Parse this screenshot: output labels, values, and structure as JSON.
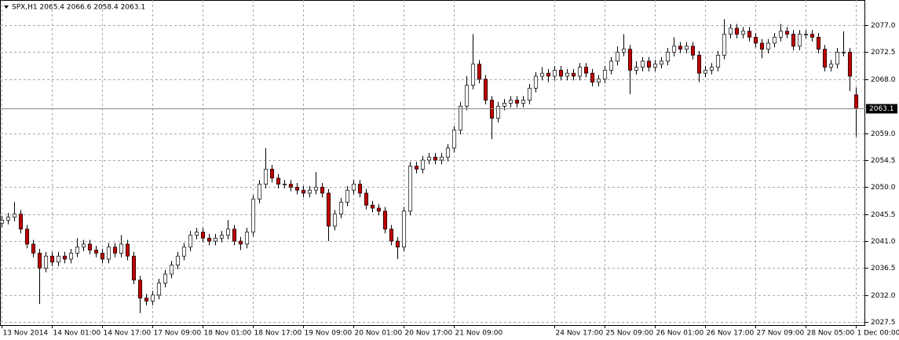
{
  "chart_data": {
    "type": "candlestick",
    "title": "SPX,H1  2065.4 2066.6 2058.4 2063.1",
    "open": [
      2044.0,
      2044.5,
      2045.0,
      2045.5,
      2043.0,
      2040.5,
      2039.0,
      2036.5,
      2038.5,
      2037.5,
      2038.5,
      2038.0,
      2039.0,
      2040.0,
      2040.5,
      2039.5,
      2039.0,
      2038.0,
      2040.0,
      2039.0,
      2040.5,
      2038.5,
      2034.5,
      2031.5,
      2031.0,
      2032.0,
      2034.0,
      2035.5,
      2037.0,
      2038.5,
      2040.0,
      2042.0,
      2042.5,
      2041.5,
      2041.0,
      2041.5,
      2042.0,
      2043.0,
      2041.0,
      2040.5,
      2042.5,
      2048.0,
      2050.5,
      2053.0,
      2051.5,
      2050.5,
      2050.5,
      2050.0,
      2049.5,
      2049.0,
      2049.5,
      2050.0,
      2049.0,
      2043.5,
      2045.5,
      2047.5,
      2049.5,
      2050.5,
      2049.0,
      2047.0,
      2046.5,
      2046.0,
      2043.0,
      2041.0,
      2040.0,
      2046.0,
      2053.5,
      2053.0,
      2054.5,
      2055.0,
      2054.5,
      2055.0,
      2056.5,
      2059.5,
      2063.5,
      2067.0,
      2070.5,
      2068.0,
      2064.5,
      2061.5,
      2063.5,
      2064.0,
      2064.5,
      2064.0,
      2064.5,
      2066.5,
      2068.5,
      2069.0,
      2068.5,
      2069.5,
      2068.5,
      2069.0,
      2068.5,
      2070.0,
      2069.0,
      2067.5,
      2068.0,
      2069.5,
      2071.0,
      2072.5,
      2073.0,
      2069.5,
      2070.0,
      2071.0,
      2070.0,
      2070.5,
      2071.0,
      2072.5,
      2073.5,
      2073.0,
      2073.5,
      2072.0,
      2069.0,
      2069.5,
      2070.0,
      2072.0,
      2075.5,
      2076.5,
      2075.5,
      2076.0,
      2075.0,
      2074.0,
      2073.0,
      2074.0,
      2075.0,
      2076.0,
      2075.5,
      2073.5,
      2075.5,
      2075.5,
      2075.0,
      2073.0,
      2070.0,
      2070.5,
      2072.5,
      2072.5,
      2065.4
    ],
    "high": [
      2045.2,
      2045.7,
      2047.5,
      2046.2,
      2043.7,
      2041.2,
      2039.7,
      2039.2,
      2039.2,
      2039.2,
      2039.2,
      2039.7,
      2041.5,
      2041.2,
      2041.2,
      2040.2,
      2039.7,
      2040.7,
      2040.7,
      2042.0,
      2041.2,
      2039.2,
      2035.2,
      2032.2,
      2032.7,
      2034.7,
      2036.2,
      2037.7,
      2039.2,
      2040.7,
      2042.7,
      2043.2,
      2043.2,
      2042.2,
      2042.2,
      2042.7,
      2044.5,
      2043.7,
      2041.7,
      2043.2,
      2048.7,
      2051.2,
      2056.5,
      2053.7,
      2052.2,
      2051.2,
      2051.2,
      2050.7,
      2050.2,
      2050.2,
      2052.5,
      2050.7,
      2049.7,
      2046.2,
      2048.2,
      2050.2,
      2051.2,
      2051.2,
      2049.7,
      2047.7,
      2047.2,
      2046.7,
      2043.7,
      2041.7,
      2046.7,
      2054.2,
      2054.2,
      2055.2,
      2055.7,
      2055.7,
      2055.7,
      2057.2,
      2060.2,
      2064.2,
      2068.5,
      2075.5,
      2071.2,
      2068.7,
      2065.2,
      2064.2,
      2064.7,
      2065.2,
      2065.2,
      2065.2,
      2067.2,
      2069.2,
      2070.0,
      2069.7,
      2070.2,
      2070.2,
      2069.7,
      2069.7,
      2070.7,
      2070.7,
      2069.7,
      2068.7,
      2070.2,
      2071.7,
      2073.5,
      2075.5,
      2073.7,
      2071.0,
      2071.7,
      2071.7,
      2071.2,
      2071.7,
      2073.2,
      2075.0,
      2074.2,
      2074.2,
      2074.2,
      2072.7,
      2070.2,
      2070.7,
      2072.7,
      2078.0,
      2077.2,
      2077.2,
      2076.7,
      2076.7,
      2075.7,
      2074.7,
      2074.7,
      2075.7,
      2077.2,
      2076.7,
      2076.2,
      2076.2,
      2076.2,
      2076.2,
      2075.7,
      2073.7,
      2071.2,
      2073.2,
      2076.0,
      2073.2,
      2066.6
    ],
    "low": [
      2043.3,
      2043.8,
      2044.3,
      2042.3,
      2039.8,
      2038.3,
      2030.5,
      2035.8,
      2036.8,
      2036.8,
      2037.3,
      2037.3,
      2038.3,
      2039.3,
      2038.8,
      2038.3,
      2037.3,
      2037.3,
      2038.3,
      2038.3,
      2037.8,
      2033.8,
      2029.0,
      2030.3,
      2030.3,
      2031.3,
      2033.3,
      2034.8,
      2036.3,
      2037.8,
      2039.3,
      2041.3,
      2040.8,
      2040.3,
      2040.3,
      2040.8,
      2041.3,
      2040.3,
      2039.5,
      2039.8,
      2041.8,
      2047.3,
      2049.8,
      2050.8,
      2049.8,
      2049.8,
      2049.3,
      2048.8,
      2048.3,
      2048.3,
      2048.8,
      2048.3,
      2041.0,
      2042.8,
      2044.8,
      2046.8,
      2048.8,
      2048.3,
      2046.3,
      2045.8,
      2045.3,
      2042.3,
      2040.3,
      2038.0,
      2039.3,
      2045.3,
      2052.3,
      2052.3,
      2053.8,
      2053.8,
      2053.8,
      2054.3,
      2055.8,
      2058.8,
      2062.8,
      2066.3,
      2067.3,
      2063.8,
      2058.0,
      2060.8,
      2062.8,
      2063.3,
      2063.3,
      2063.3,
      2063.8,
      2065.8,
      2067.8,
      2067.5,
      2067.8,
      2067.8,
      2067.8,
      2067.8,
      2067.8,
      2068.3,
      2066.8,
      2066.8,
      2067.3,
      2068.8,
      2070.3,
      2071.8,
      2065.5,
      2068.8,
      2069.3,
      2069.3,
      2069.3,
      2069.8,
      2070.3,
      2071.8,
      2072.3,
      2072.3,
      2071.3,
      2067.5,
      2068.3,
      2068.8,
      2069.3,
      2071.3,
      2074.8,
      2074.8,
      2074.8,
      2074.3,
      2073.3,
      2071.5,
      2072.3,
      2073.3,
      2074.3,
      2074.8,
      2072.8,
      2072.8,
      2074.8,
      2074.3,
      2072.3,
      2069.3,
      2069.3,
      2069.8,
      2071.8,
      2066.0,
      2058.4
    ],
    "close": [
      2044.5,
      2045.0,
      2045.5,
      2043.0,
      2040.5,
      2039.0,
      2036.5,
      2038.5,
      2037.5,
      2038.5,
      2038.0,
      2039.0,
      2040.0,
      2040.5,
      2039.5,
      2039.0,
      2038.0,
      2040.0,
      2039.0,
      2040.5,
      2038.5,
      2034.5,
      2031.5,
      2031.0,
      2032.0,
      2034.0,
      2035.5,
      2037.0,
      2038.5,
      2040.0,
      2042.0,
      2042.5,
      2041.5,
      2041.0,
      2041.5,
      2042.0,
      2043.0,
      2041.0,
      2040.5,
      2042.5,
      2048.0,
      2050.5,
      2053.0,
      2051.5,
      2050.5,
      2050.5,
      2050.0,
      2049.5,
      2049.0,
      2049.5,
      2050.0,
      2049.0,
      2043.5,
      2045.5,
      2047.5,
      2049.5,
      2050.5,
      2049.0,
      2047.0,
      2046.5,
      2046.0,
      2043.0,
      2041.0,
      2040.0,
      2046.0,
      2053.5,
      2053.0,
      2054.5,
      2055.0,
      2054.5,
      2055.0,
      2056.5,
      2059.5,
      2063.5,
      2067.0,
      2070.5,
      2068.0,
      2064.5,
      2061.5,
      2063.5,
      2064.0,
      2064.5,
      2064.0,
      2064.5,
      2066.5,
      2068.5,
      2069.0,
      2068.5,
      2069.5,
      2068.5,
      2069.0,
      2068.5,
      2070.0,
      2069.0,
      2067.5,
      2068.0,
      2069.5,
      2071.0,
      2072.5,
      2073.0,
      2069.5,
      2070.0,
      2071.0,
      2070.0,
      2070.5,
      2071.0,
      2072.5,
      2073.5,
      2073.0,
      2073.5,
      2072.0,
      2069.0,
      2069.5,
      2070.0,
      2072.0,
      2075.5,
      2076.5,
      2075.5,
      2076.0,
      2075.0,
      2074.0,
      2073.0,
      2074.0,
      2075.0,
      2076.0,
      2075.5,
      2073.5,
      2075.5,
      2075.5,
      2075.0,
      2073.0,
      2070.0,
      2070.5,
      2072.5,
      2072.5,
      2068.5,
      2063.1
    ],
    "last_price": 2063.1,
    "up_color": "#ffffff",
    "down_color": "#c00000",
    "wick_color": "#000000",
    "xlim": [
      -0.25,
      137.5
    ],
    "ylim": [
      2027.0,
      2081.2
    ],
    "xticks": [
      {
        "value": 0,
        "label": "13 Nov 2014"
      },
      {
        "value": 8,
        "label": "14 Nov 01:00"
      },
      {
        "value": 16,
        "label": "14 Nov 17:00"
      },
      {
        "value": 24,
        "label": "17 Nov 09:00"
      },
      {
        "value": 32,
        "label": "18 Nov 01:00"
      },
      {
        "value": 40,
        "label": "18 Nov 17:00"
      },
      {
        "value": 48,
        "label": "19 Nov 09:00"
      },
      {
        "value": 56,
        "label": "20 Nov 01:00"
      },
      {
        "value": 64,
        "label": "20 Nov 17:00"
      },
      {
        "value": 72,
        "label": "21 Nov 09:00"
      },
      {
        "value": 88,
        "label": "24 Nov 17:00"
      },
      {
        "value": 96,
        "label": "25 Nov 09:00"
      },
      {
        "value": 104,
        "label": "26 Nov 01:00"
      },
      {
        "value": 112,
        "label": "26 Nov 17:00"
      },
      {
        "value": 120,
        "label": "27 Nov 09:00"
      },
      {
        "value": 128,
        "label": "28 Nov 05:00"
      },
      {
        "value": 136,
        "label": "1 Dec 00:00"
      }
    ],
    "yticks": [
      {
        "value": 2077,
        "label": "2077.0"
      },
      2072.5,
      {
        "value": 2068,
        "label": "2068.0"
      },
      {
        "value": 2059,
        "label": "2059.0"
      },
      2054.5,
      {
        "value": 2050,
        "label": "2050.0"
      },
      2045.5,
      {
        "value": 2041,
        "label": "2041.0"
      },
      2036.5,
      {
        "value": 2032,
        "label": "2032.0"
      },
      2027.5
    ],
    "grid": true
  }
}
